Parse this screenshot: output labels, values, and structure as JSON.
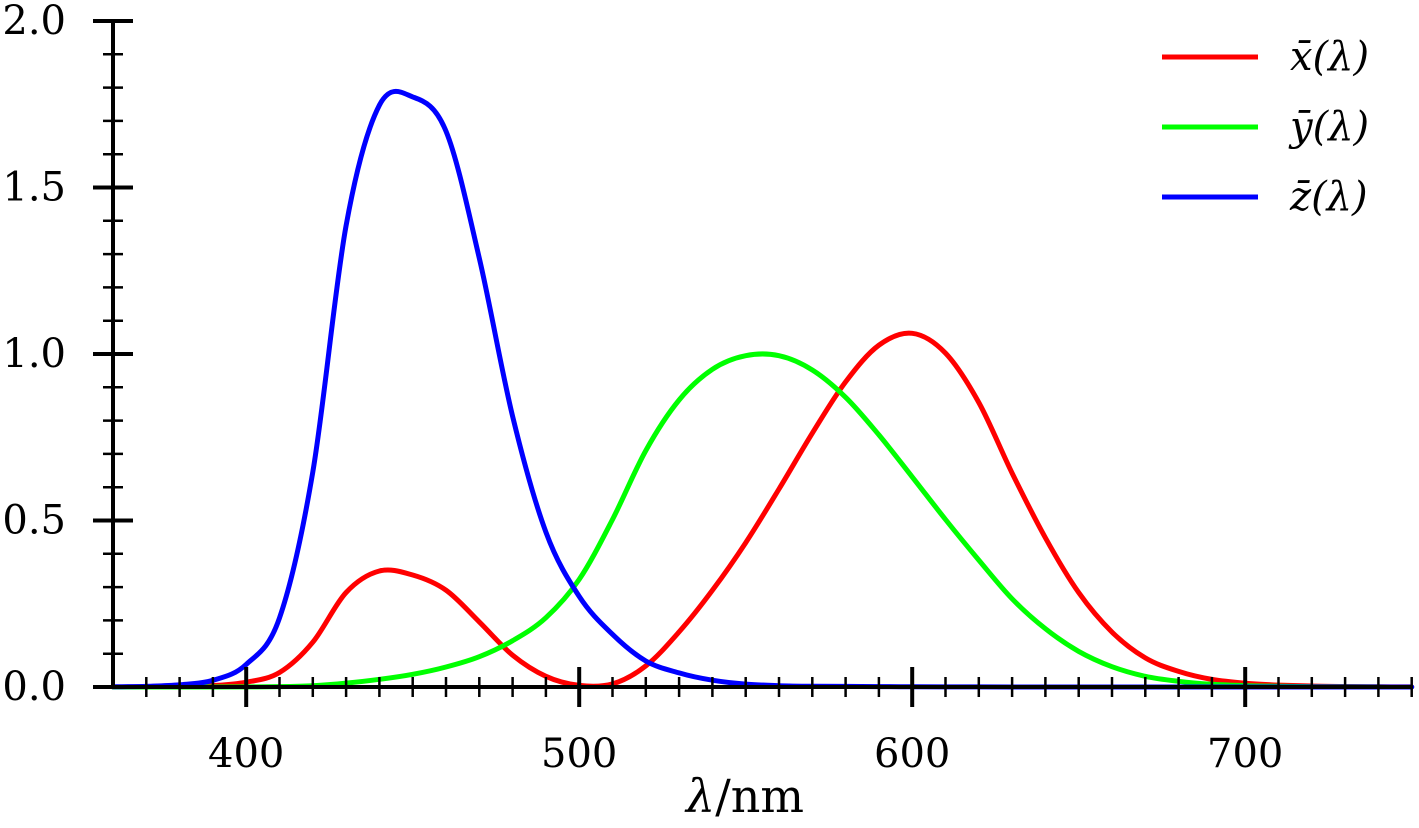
{
  "chart_data": {
    "type": "line",
    "title": "",
    "xlabel": "λ/nm",
    "xlabel_symbol": "λ",
    "xlabel_unit": "/nm",
    "ylabel": "",
    "xlim": [
      360,
      750
    ],
    "ylim": [
      0,
      2.0
    ],
    "x_ticks": [
      400,
      500,
      600,
      700
    ],
    "x_tick_labels": [
      "400",
      "500",
      "600",
      "700"
    ],
    "y_ticks": [
      0,
      0.5,
      1.0,
      1.5,
      2.0
    ],
    "y_tick_labels": [
      "0.0",
      "0.5",
      "1.0",
      "1.5",
      "2.0"
    ],
    "x_minor_step": 10,
    "y_minor_step": 0.1,
    "grid": false,
    "legend_position": "top-right",
    "x": [
      360,
      370,
      380,
      390,
      400,
      410,
      420,
      430,
      440,
      450,
      460,
      470,
      480,
      490,
      500,
      510,
      520,
      530,
      540,
      550,
      560,
      570,
      580,
      590,
      600,
      610,
      620,
      630,
      640,
      650,
      660,
      670,
      680,
      690,
      700,
      710,
      720,
      730,
      740,
      750
    ],
    "series": [
      {
        "name": "x̄(λ)",
        "color": "#ff0000",
        "values": [
          0.0001,
          0.0004,
          0.0014,
          0.0042,
          0.0143,
          0.0435,
          0.1344,
          0.2839,
          0.3483,
          0.3362,
          0.2908,
          0.1954,
          0.0956,
          0.032,
          0.0049,
          0.0093,
          0.0633,
          0.1655,
          0.2904,
          0.4334,
          0.5945,
          0.7621,
          0.9163,
          1.0263,
          1.0622,
          1.0026,
          0.8544,
          0.6424,
          0.4479,
          0.2835,
          0.1649,
          0.0874,
          0.0468,
          0.0227,
          0.0114,
          0.0058,
          0.0029,
          0.0014,
          0.0007,
          0.0003
        ]
      },
      {
        "name": "ȳ(λ)",
        "color": "#00ff00",
        "values": [
          0.0,
          0.0,
          0.0,
          0.0001,
          0.0004,
          0.0012,
          0.004,
          0.0116,
          0.023,
          0.038,
          0.06,
          0.091,
          0.139,
          0.208,
          0.323,
          0.503,
          0.71,
          0.862,
          0.954,
          0.995,
          0.995,
          0.952,
          0.87,
          0.757,
          0.631,
          0.503,
          0.381,
          0.265,
          0.175,
          0.107,
          0.061,
          0.032,
          0.017,
          0.0082,
          0.0041,
          0.0021,
          0.001,
          0.0005,
          0.0002,
          0.0001
        ]
      },
      {
        "name": "z̄(λ)",
        "color": "#0000ff",
        "values": [
          0.0006,
          0.0019,
          0.0065,
          0.0201,
          0.0679,
          0.2074,
          0.6456,
          1.3856,
          1.7471,
          1.7721,
          1.6692,
          1.2876,
          0.813,
          0.4652,
          0.272,
          0.1582,
          0.0782,
          0.0422,
          0.0203,
          0.0087,
          0.0039,
          0.0021,
          0.0017,
          0.0011,
          0.0008,
          0.0003,
          0.0002,
          0.0,
          0.0,
          0.0,
          0.0,
          0.0,
          0.0,
          0.0,
          0.0,
          0.0,
          0.0,
          0.0,
          0.0,
          0.0
        ]
      }
    ]
  }
}
